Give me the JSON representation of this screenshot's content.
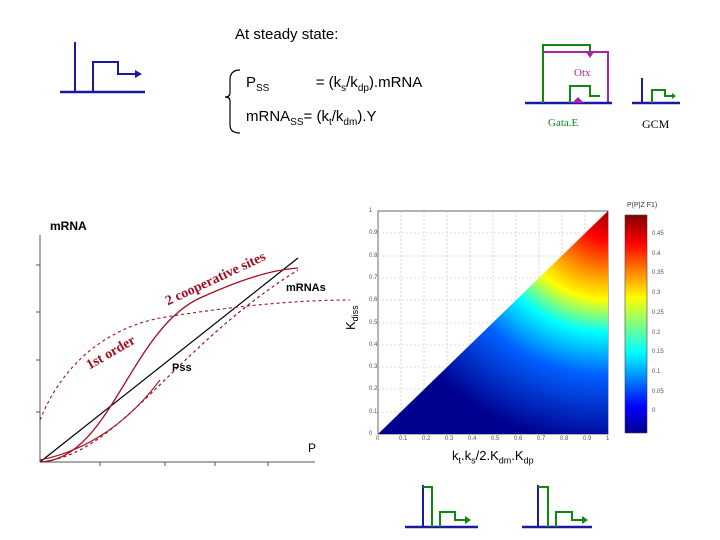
{
  "title": "At steady state:",
  "equations": {
    "line1": {
      "lhs": "P",
      "lhs_sub": "SS",
      "rhs_pre": "= (k",
      "rhs_sub1": "s",
      "rhs_mid": "/k",
      "rhs_sub2": "dp",
      "rhs_post": ").mRNA"
    },
    "line2": {
      "lhs": "mRNA",
      "lhs_sub": "SS",
      "rhs_pre": "= (k",
      "rhs_sub1": "t",
      "rhs_mid": "/k",
      "rhs_sub2": "dm",
      "rhs_post": ").Y"
    }
  },
  "network_labels": {
    "otx": "Otx",
    "gatae": "Gata.E",
    "gcm": "GCM"
  },
  "left_plot": {
    "ylabel": "mRNA",
    "xlabel": "P",
    "curve_labels": {
      "cooperative": "2 cooperative sites",
      "first_order": "1st order",
      "mrna_s": "mRNAs",
      "pss": "Pss"
    }
  },
  "heatmap": {
    "ylabel": "K",
    "ylabel_sub": "diss",
    "xlabel_parts": {
      "a": "k",
      "a_sub": "t",
      "b": ".k",
      "b_sub": "s",
      "c": "/2.K",
      "c_sub": "dm",
      "d": ".K",
      "d_sub": "dp"
    },
    "colorbar_title": "P(P|Z F1)",
    "yticks": [
      "1",
      "0.9",
      "0.8",
      "0.7",
      "0.6",
      "0.5",
      "0.4",
      "0.3",
      "0.2",
      "0.1",
      "0"
    ],
    "xticks": [
      "0",
      "0.1",
      "0.2",
      "0.3",
      "0.4",
      "0.5",
      "0.6",
      "0.7",
      "0.8",
      "0.9",
      "1"
    ],
    "colorbar_ticks": [
      "0.45",
      "0.4",
      "0.35",
      "0.3",
      "0.25",
      "0.2",
      "0.15",
      "0.1",
      "0.05",
      "0"
    ],
    "colors": [
      "#00008f",
      "#0000ff",
      "#0080ff",
      "#00ffff",
      "#80ff80",
      "#ffff00",
      "#ff8000",
      "#ff0000",
      "#800000"
    ]
  },
  "colors": {
    "promoter": "#1a1aa0",
    "gene": "#118811",
    "otx_box": "#aa22aa",
    "curve_red": "#a01020",
    "curve_black": "#000000"
  }
}
